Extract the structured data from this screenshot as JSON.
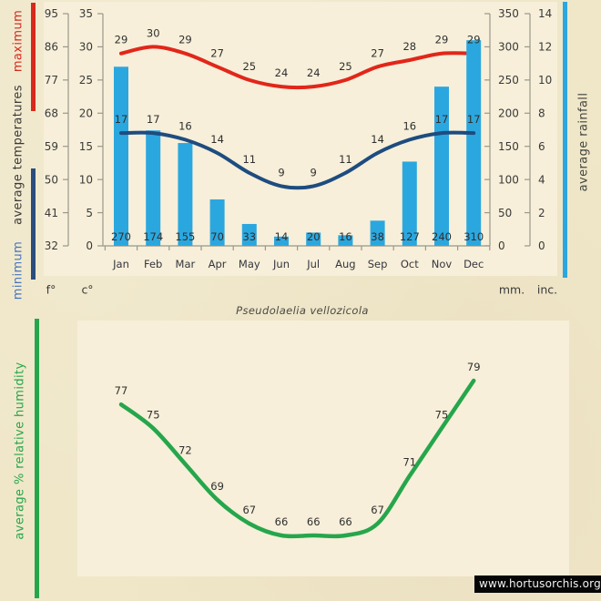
{
  "title": "Pseudolaelia vellozicola",
  "watermark": "www.hortusorchis.org",
  "colors": {
    "background": "#f0e7c9",
    "plot_background": "#f7efd9",
    "axis": "#98988c",
    "text": "#3a3a3a",
    "max_temp_red": "#e2261a",
    "min_temp_navy": "#1e4c80",
    "rainfall_cyan": "#2ba7df",
    "humidity_green": "#26a64c",
    "minimum_label_blue": "#4576be"
  },
  "chart_data": [
    {
      "id": "climate-temperature-rainfall",
      "type": "composite",
      "categories": [
        "Jan",
        "Feb",
        "Mar",
        "Apr",
        "May",
        "Jun",
        "Jul",
        "Aug",
        "Sep",
        "Oct",
        "Nov",
        "Dec"
      ],
      "series": [
        {
          "name": "maximum temperature",
          "type": "line",
          "unit": "°C",
          "color": "#e2261a",
          "values": [
            29,
            30,
            29,
            27,
            25,
            24,
            24,
            25,
            27,
            28,
            29,
            29
          ]
        },
        {
          "name": "minimum temperature",
          "type": "line",
          "unit": "°C",
          "color": "#1e4c80",
          "values": [
            17,
            17,
            16,
            14,
            11,
            9,
            9,
            11,
            14,
            16,
            17,
            17
          ]
        },
        {
          "name": "average rainfall",
          "type": "bar",
          "unit": "mm",
          "color": "#2ba7df",
          "values": [
            270,
            174,
            155,
            70,
            33,
            14,
            20,
            16,
            38,
            127,
            240,
            310
          ]
        }
      ],
      "axes": {
        "fahrenheit": {
          "unit_label": "f°",
          "ticks": [
            "95",
            "86",
            "77",
            "68",
            "59",
            "50",
            "41",
            "32"
          ]
        },
        "celsius": {
          "unit_label": "c°",
          "ticks": [
            "35",
            "30",
            "25",
            "20",
            "15",
            "10",
            "5",
            "0"
          ],
          "range": [
            0,
            35
          ]
        },
        "millimeters": {
          "unit_label": "mm.",
          "ticks": [
            "350",
            "300",
            "250",
            "200",
            "150",
            "100",
            "50",
            "0"
          ],
          "range": [
            0,
            350
          ]
        },
        "inches": {
          "unit_label": "inc.",
          "ticks": [
            "14",
            "12",
            "10",
            "8",
            "6",
            "4",
            "2",
            "0"
          ],
          "range": [
            0,
            14
          ]
        }
      },
      "axis_titles": {
        "maximum": "maximum",
        "average_temperatures": "average temperatures",
        "minimum": "minimum",
        "average_rainfall": "average rainfall"
      },
      "grid": false,
      "legend_position": "rotated-side-labels"
    },
    {
      "id": "humidity",
      "type": "line",
      "categories": [
        "Jan",
        "Feb",
        "Mar",
        "Apr",
        "May",
        "Jun",
        "Jul",
        "Aug",
        "Sep",
        "Oct",
        "Nov",
        "Dec"
      ],
      "series": [
        {
          "name": "average % relative humidity",
          "color": "#26a64c",
          "values": [
            77,
            75,
            72,
            69,
            67,
            66,
            66,
            66,
            67,
            71,
            75,
            79
          ]
        }
      ],
      "ylabel": "average %  relative humidity",
      "grid": false,
      "x_axis_visible": false
    }
  ]
}
